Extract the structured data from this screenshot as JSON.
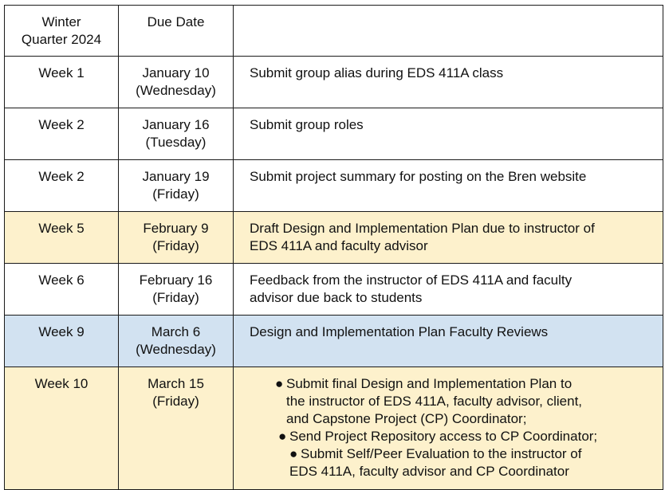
{
  "header": {
    "col1": [
      "Winter",
      "Quarter 2024"
    ],
    "col2": "Due Date",
    "col3": ""
  },
  "rows": [
    {
      "week": "Week 1",
      "date": [
        "January 10",
        "(Wednesday)"
      ],
      "task": [
        "Submit group alias during EDS 411A class"
      ],
      "color": "#ffffff"
    },
    {
      "week": "Week 2",
      "date": [
        "January 16",
        "(Tuesday)"
      ],
      "task": [
        "Submit group roles"
      ],
      "color": "#ffffff"
    },
    {
      "week": "Week 2",
      "date": [
        "January 19",
        "(Friday)"
      ],
      "task": [
        "Submit project summary for posting on the Bren website"
      ],
      "color": "#ffffff"
    },
    {
      "week": "Week 5",
      "date": [
        "February 9",
        "(Friday)"
      ],
      "task": [
        "Draft Design and Implementation Plan due to instructor of",
        "EDS 411A and faculty advisor"
      ],
      "color": "#fdf1cc"
    },
    {
      "week": "Week 6",
      "date": [
        "February 16",
        "(Friday)"
      ],
      "task": [
        "Feedback from the instructor of EDS 411A and faculty",
        "advisor due back to students"
      ],
      "color": "#ffffff"
    },
    {
      "week": "Week 9",
      "date": [
        "March 6",
        "(Wednesday)"
      ],
      "task": [
        "Design and Implementation Plan Faculty Reviews"
      ],
      "color": "#d2e2f1"
    },
    {
      "week": "Week 10",
      "date": [
        "March 15",
        "(Friday)"
      ],
      "bullets": [
        [
          "Submit final Design and Implementation Plan to",
          "the instructor of EDS 411A, faculty advisor, client,",
          "and Capstone Project (CP) Coordinator;"
        ],
        [
          "Send Project Repository access to CP Coordinator;"
        ],
        [
          "Submit Self/Peer Evaluation to the instructor of",
          "EDS 411A, faculty advisor and CP Coordinator"
        ]
      ],
      "color": "#fdf1cc"
    }
  ]
}
